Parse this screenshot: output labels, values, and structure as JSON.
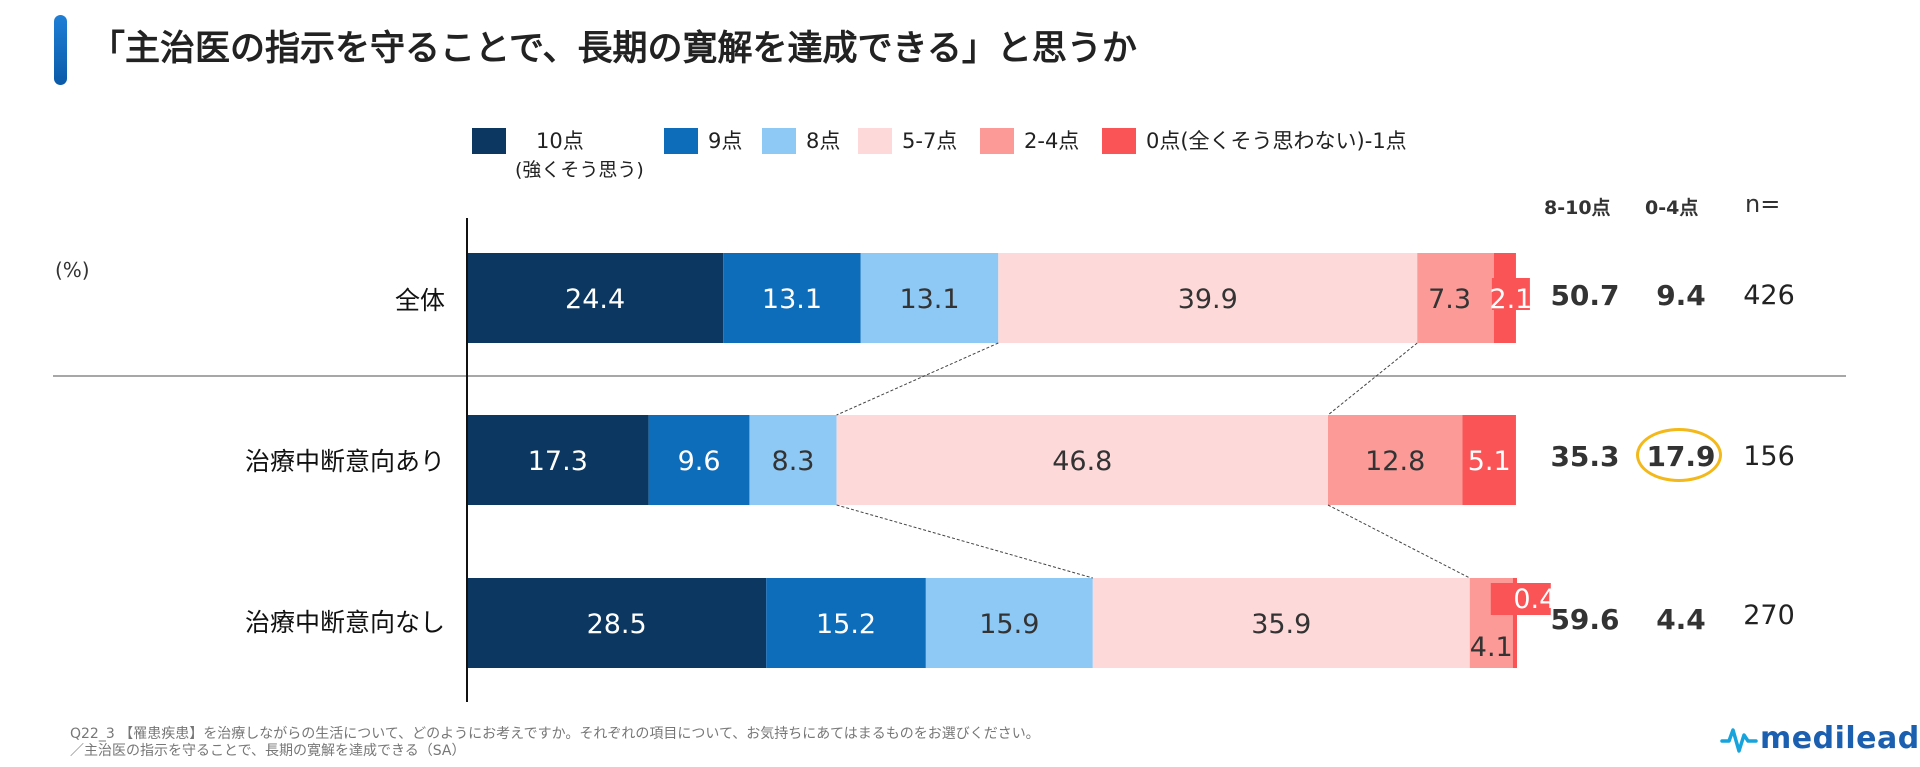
{
  "title": "「主治医の指示を守ることで、長期の寛解を達成できる」と思うか",
  "unit_label": "(%)",
  "legend": [
    {
      "label": "10点",
      "sublabel": "(強くそう思う)",
      "color": "#0b3760"
    },
    {
      "label": "9点",
      "sublabel": "",
      "color": "#0e6dbb"
    },
    {
      "label": "8点",
      "sublabel": "",
      "color": "#8ec8f5"
    },
    {
      "label": "5-7点",
      "sublabel": "",
      "color": "#fddad9"
    },
    {
      "label": "2-4点",
      "sublabel": "",
      "color": "#fb9a97"
    },
    {
      "label": "0点(全くそう思わない)-1点",
      "sublabel": "",
      "color": "#fa5456"
    }
  ],
  "columns": {
    "top": "8-10点",
    "bottom": "0-4点",
    "n": "n="
  },
  "chart_data": {
    "type": "bar",
    "orientation": "horizontal-stacked-100",
    "title": "「主治医の指示を守ることで、長期の寛解を達成できる」と思うか",
    "xlabel": "(%)",
    "ylabel": "",
    "xlim": [
      0,
      100
    ],
    "categories": [
      "全体",
      "治療中断意向あり",
      "治療中断意向なし"
    ],
    "series": [
      {
        "name": "10点(強くそう思う)",
        "color": "#0b3760",
        "values": [
          24.4,
          17.3,
          28.5
        ]
      },
      {
        "name": "9点",
        "color": "#0e6dbb",
        "values": [
          13.1,
          9.6,
          15.2
        ]
      },
      {
        "name": "8点",
        "color": "#8ec8f5",
        "values": [
          13.1,
          8.3,
          15.9
        ]
      },
      {
        "name": "5-7点",
        "color": "#fddad9",
        "values": [
          39.9,
          46.8,
          35.9
        ]
      },
      {
        "name": "2-4点",
        "color": "#fb9a97",
        "values": [
          7.3,
          12.8,
          4.1
        ]
      },
      {
        "name": "0点(全くそう思わない)-1点",
        "color": "#fa5456",
        "values": [
          2.1,
          5.1,
          0.4
        ]
      }
    ],
    "summary": {
      "top_8_10": [
        "50.7",
        "35.3",
        "59.6"
      ],
      "bottom_0_4": [
        "9.4",
        "17.9",
        "4.4"
      ],
      "n": [
        "426",
        "156",
        "270"
      ]
    }
  },
  "footnote": {
    "line1": "Q22_3 【罹患疾患】を治療しながらの生活について、どのようにお考えですか。それぞれの項目について、お気持ちにあてはまるものをお選びください。",
    "line2": "／主治医の指示を守ることで、長期の寛解を達成できる（SA）"
  },
  "logo": {
    "text": "medilead"
  }
}
